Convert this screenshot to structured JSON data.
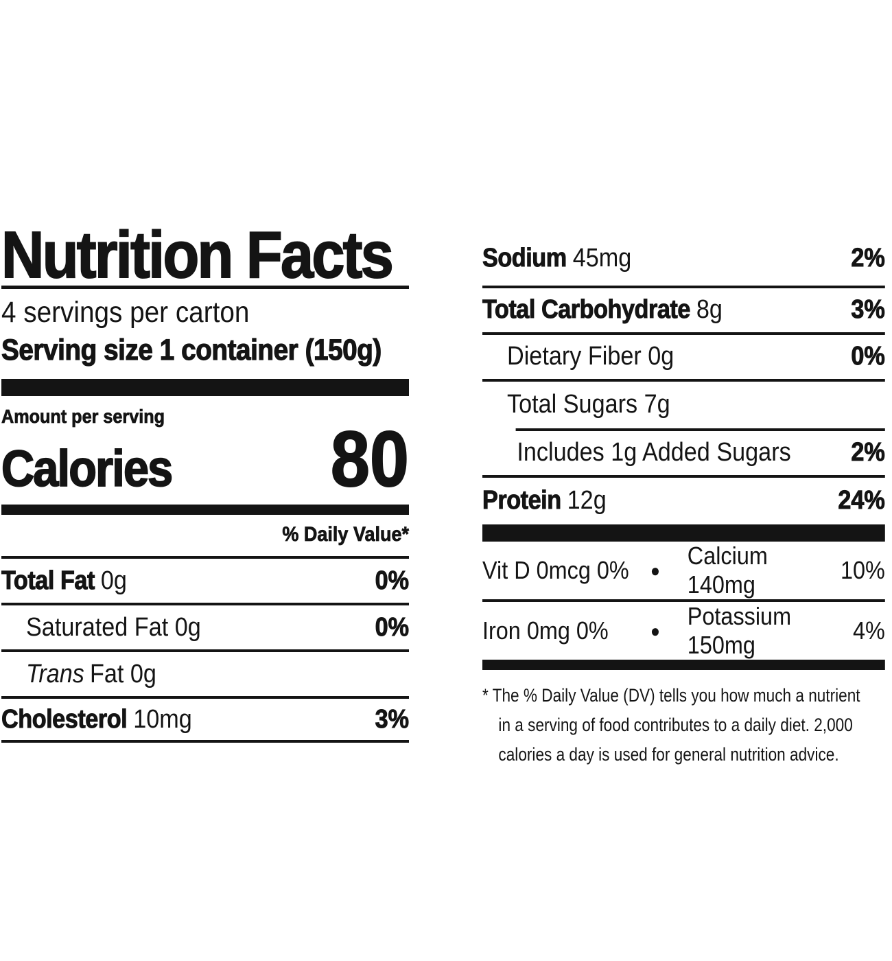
{
  "label": {
    "title": "Nutrition Facts",
    "servings_line": "4 servings per carton",
    "serving_size_line": "Serving size 1 container (150g)",
    "amount_per_serving": "Amount per serving",
    "calories_label": "Calories",
    "calories_value": "80",
    "daily_value_header": "% Daily Value*"
  },
  "left_rows": [
    {
      "bold": "Total Fat",
      "rest": "0g",
      "pct": "0%"
    },
    {
      "rest": "Saturated Fat 0g",
      "pct": "0%"
    },
    {
      "italic": "Trans",
      "rest": "Fat 0g",
      "pct": ""
    },
    {
      "bold": "Cholesterol",
      "rest": "10mg",
      "pct": "3%"
    }
  ],
  "right_rows": [
    {
      "bold": "Sodium",
      "rest": "45mg",
      "pct": "2%"
    },
    {
      "bold": "Total Carbohydrate",
      "rest": "8g",
      "pct": "3%"
    },
    {
      "rest": "Dietary Fiber 0g",
      "pct": "0%"
    },
    {
      "rest": "Total Sugars 7g",
      "pct": ""
    },
    {
      "rest": "Includes 1g Added Sugars",
      "pct": "2%"
    },
    {
      "bold": "Protein",
      "rest": "12g",
      "pct": "24%"
    }
  ],
  "micronutrients": [
    {
      "left": "Vit D 0mcg 0%",
      "bullet": "●",
      "name": "Calcium 140mg",
      "pct": "10%"
    },
    {
      "left": "Iron 0mg 0%",
      "bullet": "●",
      "name": "Potassium 150mg",
      "pct": "4%"
    }
  ],
  "footnote_lines": [
    "* The % Daily Value (DV) tells you how much a nutrient",
    "in a serving of food contributes to a daily diet. 2,000",
    "calories a day is used for general nutrition advice."
  ],
  "colors": {
    "ink": "#141414",
    "background": "#ffffff"
  }
}
